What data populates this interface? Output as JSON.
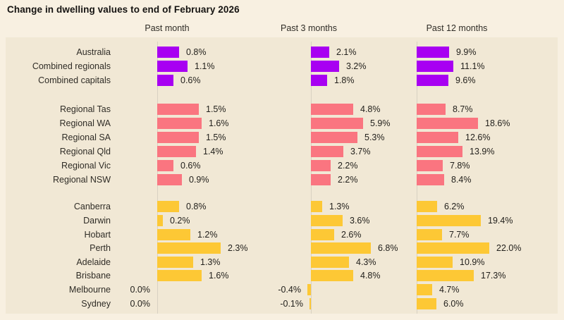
{
  "title": "Change in dwelling values to end of February 2026",
  "columns": [
    "Past month",
    "Past 3 months",
    "Past 12 months"
  ],
  "colors": {
    "background": "#f8f0e1",
    "panel": "#f1e8d5",
    "axis_line": "#d8d1c2",
    "national_purple": "#a800f2",
    "regional_pink": "#fa7580",
    "capital_yellow": "#fdc835",
    "text": "#2f2c26"
  },
  "chart_data": {
    "type": "bar",
    "orientation": "horizontal",
    "title": "Change in dwelling values to end of February 2026",
    "unit": "%",
    "columns": [
      "Past month",
      "Past 3 months",
      "Past 12 months"
    ],
    "legend": "none",
    "grid": "off",
    "column_axis_baseline": "zero line per column, bars grow right for positive and left for negative values",
    "groups": [
      {
        "name": "national-aggregates",
        "color": "#a800f2",
        "rows": [
          {
            "label": "Australia",
            "values": [
              0.8,
              2.1,
              9.9
            ]
          },
          {
            "label": "Combined regionals",
            "values": [
              1.1,
              3.2,
              11.1
            ]
          },
          {
            "label": "Combined capitals",
            "values": [
              0.6,
              1.8,
              9.6
            ]
          }
        ]
      },
      {
        "name": "regional-markets",
        "color": "#fa7580",
        "rows": [
          {
            "label": "Regional Tas",
            "values": [
              1.5,
              4.8,
              8.7
            ]
          },
          {
            "label": "Regional WA",
            "values": [
              1.6,
              5.9,
              18.6
            ]
          },
          {
            "label": "Regional SA",
            "values": [
              1.5,
              5.3,
              12.6
            ]
          },
          {
            "label": "Regional Qld",
            "values": [
              1.4,
              3.7,
              13.9
            ]
          },
          {
            "label": "Regional Vic",
            "values": [
              0.6,
              2.2,
              7.8
            ]
          },
          {
            "label": "Regional NSW",
            "values": [
              0.9,
              2.2,
              8.4
            ]
          }
        ]
      },
      {
        "name": "capital-cities",
        "color": "#fdc835",
        "rows": [
          {
            "label": "Canberra",
            "values": [
              0.8,
              1.3,
              6.2
            ]
          },
          {
            "label": "Darwin",
            "values": [
              0.2,
              3.6,
              19.4
            ]
          },
          {
            "label": "Hobart",
            "values": [
              1.2,
              2.6,
              7.7
            ]
          },
          {
            "label": "Perth",
            "values": [
              2.3,
              6.8,
              22.0
            ]
          },
          {
            "label": "Adelaide",
            "values": [
              1.3,
              4.3,
              10.9
            ]
          },
          {
            "label": "Brisbane",
            "values": [
              1.6,
              4.8,
              17.3
            ]
          },
          {
            "label": "Melbourne",
            "values": [
              0.0,
              -0.4,
              4.7
            ]
          },
          {
            "label": "Sydney",
            "values": [
              0.0,
              -0.1,
              6.0
            ]
          }
        ]
      }
    ]
  }
}
